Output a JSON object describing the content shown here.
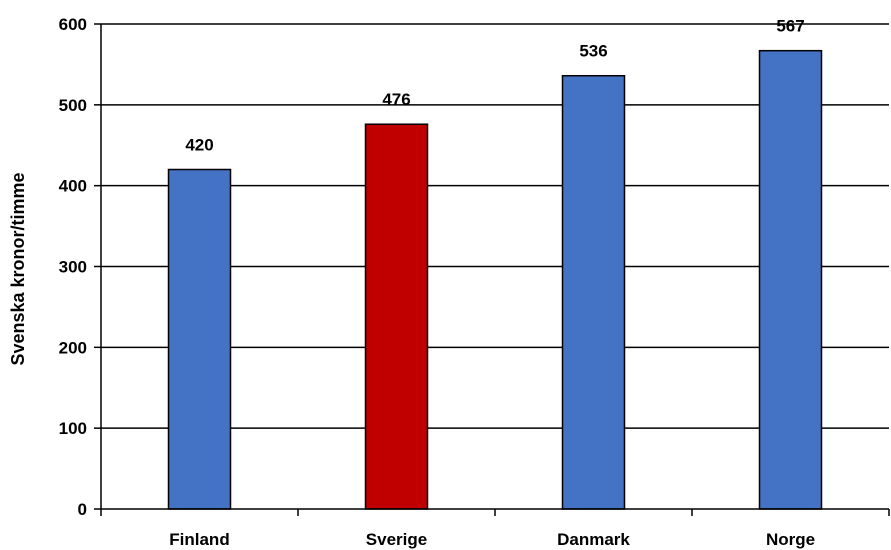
{
  "chart_data": {
    "type": "bar",
    "title": "",
    "xlabel": "",
    "ylabel": "Svenska kronor/timme",
    "categories": [
      "Finland",
      "Sverige",
      "Danmark",
      "Norge"
    ],
    "values": [
      420,
      476,
      536,
      567
    ],
    "bar_colors": [
      "#4472C4",
      "#C00000",
      "#4472C4",
      "#4472C4"
    ],
    "ylim": [
      0,
      600
    ],
    "yticks": [
      0,
      100,
      200,
      300,
      400,
      500,
      600
    ],
    "grid": true,
    "legend": "none",
    "data_labels": true
  }
}
